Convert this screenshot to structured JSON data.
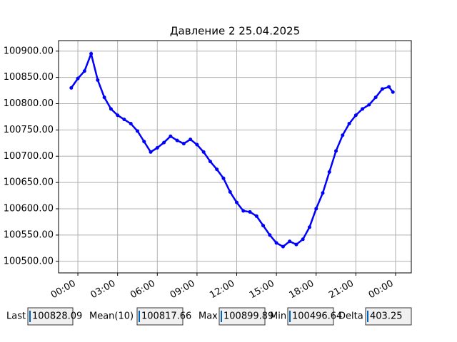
{
  "chart_data": {
    "type": "line",
    "title": "Давление 2 25.04.2025",
    "x": [
      -0.5,
      0,
      0.5,
      1,
      1.5,
      2,
      2.5,
      3,
      3.5,
      4,
      4.5,
      5,
      5.5,
      6,
      6.5,
      7,
      7.5,
      8,
      8.5,
      9,
      9.5,
      10,
      10.5,
      11,
      11.5,
      12,
      12.5,
      13,
      13.5,
      14,
      14.5,
      15,
      15.5,
      16,
      16.5,
      17,
      17.5,
      18,
      18.5,
      19,
      19.5,
      20,
      20.5,
      21,
      21.5,
      22,
      22.5,
      23,
      23.5,
      23.8
    ],
    "values": [
      100830,
      100848,
      100862,
      100895,
      100845,
      100812,
      100790,
      100778,
      100770,
      100762,
      100748,
      100728,
      100708,
      100716,
      100726,
      100738,
      100730,
      100724,
      100732,
      100722,
      100708,
      100690,
      100675,
      100658,
      100632,
      100612,
      100596,
      100594,
      100586,
      100568,
      100550,
      100535,
      100528,
      100538,
      100532,
      100542,
      100565,
      100600,
      100630,
      100670,
      100710,
      100740,
      100762,
      100778,
      100790,
      100798,
      100812,
      100828,
      100832,
      100822
    ],
    "color": "#0000ff",
    "xlim": [
      -1.46,
      25.19
    ],
    "xticks": [
      {
        "value": 0,
        "label": "00:00"
      },
      {
        "value": 3,
        "label": "03:00"
      },
      {
        "value": 6,
        "label": "06:00"
      },
      {
        "value": 9,
        "label": "09:00"
      },
      {
        "value": 12,
        "label": "12:00"
      },
      {
        "value": 15,
        "label": "15:00"
      },
      {
        "value": 18,
        "label": "18:00"
      },
      {
        "value": 21,
        "label": "21:00"
      },
      {
        "value": 24,
        "label": "00:00"
      }
    ],
    "ylim": [
      100478,
      100920
    ],
    "yticks": [
      {
        "value": 100500,
        "label": "100500.00"
      },
      {
        "value": 100550,
        "label": "100550.00"
      },
      {
        "value": 100600,
        "label": "100600.00"
      },
      {
        "value": 100650,
        "label": "100650.00"
      },
      {
        "value": 100700,
        "label": "100700.00"
      },
      {
        "value": 100750,
        "label": "100750.00"
      },
      {
        "value": 100800,
        "label": "100800.00"
      },
      {
        "value": 100850,
        "label": "100850.00"
      },
      {
        "value": 100900,
        "label": "100900.00"
      }
    ],
    "grid": true
  },
  "stats": [
    {
      "label": "Last",
      "value": 100828.09
    },
    {
      "label": "Mean(10)",
      "value": 100817.66
    },
    {
      "label": "Max",
      "value": 100899.89
    },
    {
      "label": "Min",
      "value": 100496.64
    },
    {
      "label": "Delta",
      "value": 403.25
    }
  ]
}
